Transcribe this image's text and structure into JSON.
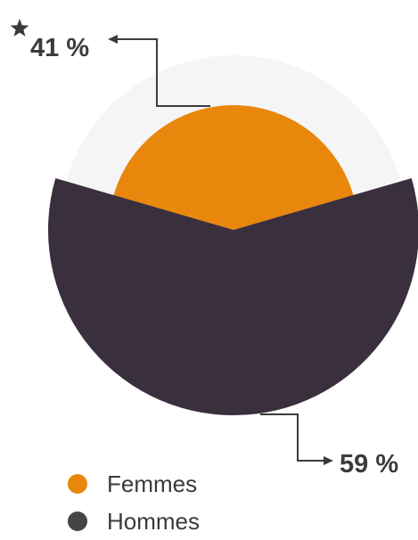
{
  "chart_data": {
    "type": "pie",
    "categories": [
      "Femmes",
      "Hommes"
    ],
    "values": [
      41,
      59
    ],
    "data_labels": [
      "41 %",
      "59 %"
    ],
    "colors": {
      "Femmes": "#E8870C",
      "Hommes": "#3A2F3D",
      "legend_Hommes": "#454545",
      "background_circle": "#F5F5F5",
      "arrow": "#3B3B3B",
      "label": "#3B3B3B"
    },
    "legend": {
      "position": "bottom-left",
      "items": [
        {
          "label": "Femmes",
          "color": "#E8870C"
        },
        {
          "label": "Hommes",
          "color": "#454545"
        }
      ]
    },
    "annotations": {
      "star_marker_on": "Femmes",
      "star_icon": "star-icon"
    },
    "title": "",
    "xlabel": "",
    "ylabel": ""
  }
}
